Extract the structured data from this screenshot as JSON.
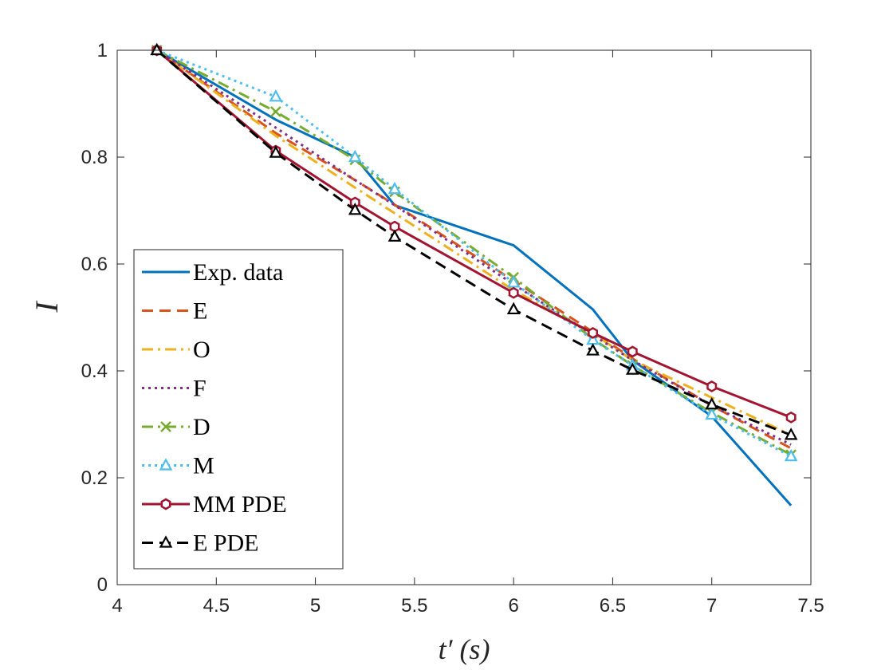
{
  "chart_data": {
    "type": "line",
    "title": "",
    "xlabel": "t′ (s)",
    "ylabel": "I",
    "xlim": [
      4,
      7.5
    ],
    "ylim": [
      0,
      1
    ],
    "xticks": [
      "4",
      "4.5",
      "5",
      "5.5",
      "6",
      "6.5",
      "7",
      "7.5"
    ],
    "yticks": [
      "0",
      "0.2",
      "0.4",
      "0.6",
      "0.8",
      "1"
    ],
    "grid": false,
    "legend_position": "left-middle",
    "x": [
      4.2,
      4.8,
      5.2,
      5.4,
      6.0,
      6.4,
      6.6,
      7.0,
      7.4
    ],
    "series": [
      {
        "name": "Exp. data",
        "color": "#0072BD",
        "dash": "solid",
        "marker": "none",
        "values": [
          1.0,
          0.87,
          0.8,
          0.71,
          0.635,
          0.515,
          0.42,
          0.315,
          0.148
        ]
      },
      {
        "name": "E",
        "color": "#D95319",
        "dash": "dashed",
        "marker": "none",
        "values": [
          1.0,
          0.845,
          0.757,
          0.711,
          0.569,
          0.473,
          0.423,
          0.335,
          0.255
        ]
      },
      {
        "name": "O",
        "color": "#EDB120",
        "dash": "dashdot",
        "marker": "none",
        "values": [
          1.0,
          0.84,
          0.743,
          0.695,
          0.551,
          0.47,
          0.42,
          0.35,
          0.28
        ]
      },
      {
        "name": "F",
        "color": "#7E2F8E",
        "dash": "dotted",
        "marker": "none",
        "values": [
          1.0,
          0.855,
          0.757,
          0.71,
          0.562,
          0.467,
          0.42,
          0.335,
          0.262
        ]
      },
      {
        "name": "D",
        "color": "#77AC30",
        "dash": "dashdot",
        "marker": "x",
        "values": [
          1.0,
          0.885,
          0.795,
          0.735,
          0.575,
          0.46,
          0.41,
          0.322,
          0.243
        ]
      },
      {
        "name": "M",
        "color": "#4DBEEE",
        "dash": "dotted",
        "marker": "triangle",
        "values": [
          1.0,
          0.913,
          0.8,
          0.74,
          0.565,
          0.458,
          0.41,
          0.318,
          0.24
        ]
      },
      {
        "name": "MM PDE",
        "color": "#A2142F",
        "dash": "solid",
        "marker": "hexagon",
        "values": [
          1.0,
          0.812,
          0.715,
          0.67,
          0.546,
          0.471,
          0.436,
          0.371,
          0.313
        ]
      },
      {
        "name": "E PDE",
        "color": "#000000",
        "dash": "dashed",
        "marker": "triangle",
        "values": [
          1.0,
          0.808,
          0.701,
          0.651,
          0.515,
          0.438,
          0.402,
          0.337,
          0.28
        ]
      }
    ]
  }
}
